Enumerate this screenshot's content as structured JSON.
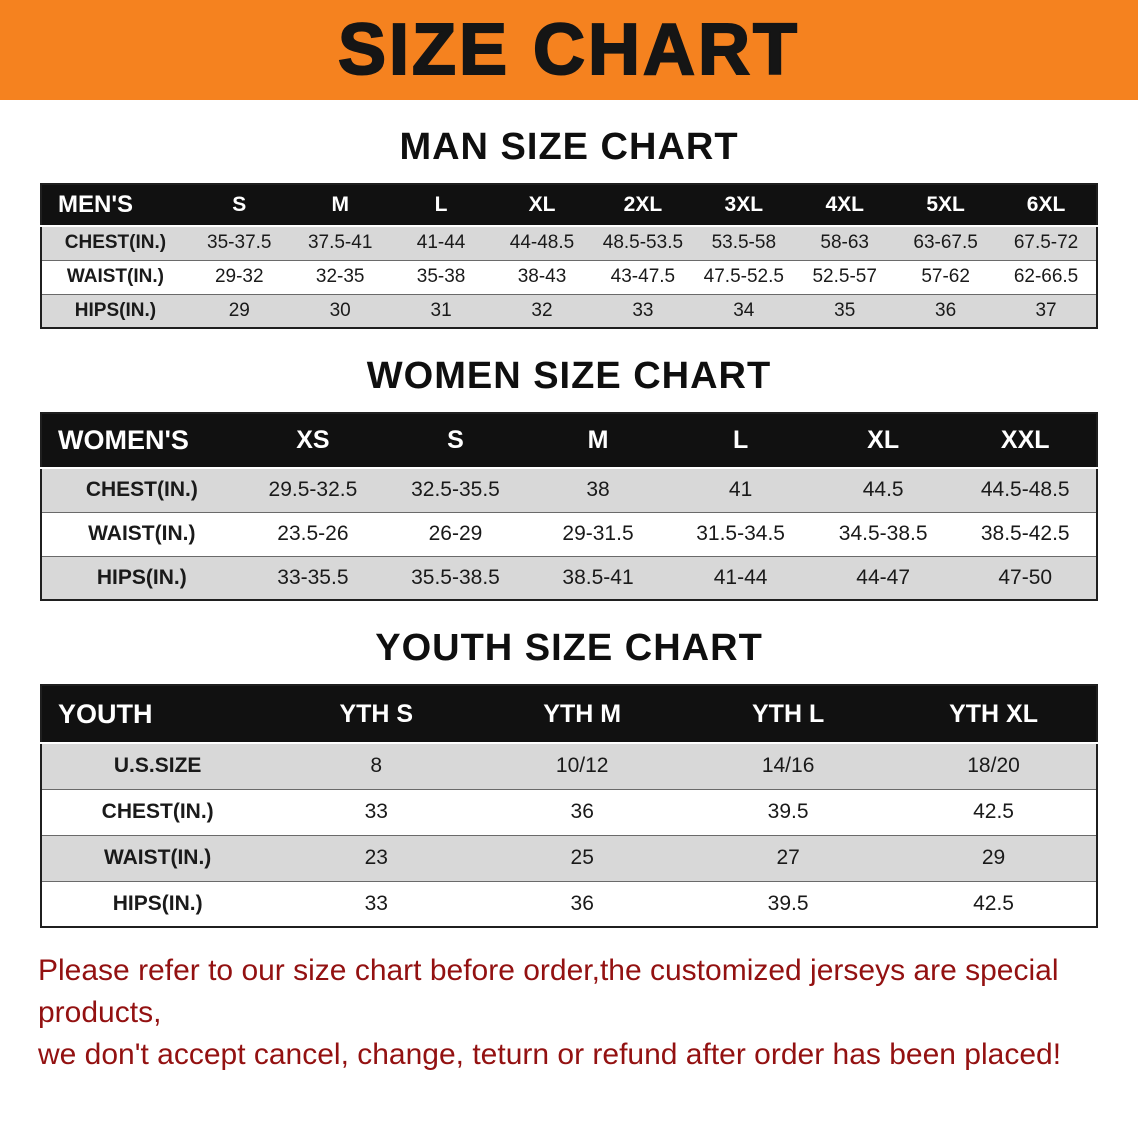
{
  "banner": {
    "title": "SIZE CHART"
  },
  "colors": {
    "banner_bg": "#f5821f",
    "table_header_bg": "#111111",
    "stripe_gray": "#d8d8d8",
    "footer_red": "#931111"
  },
  "sections": [
    {
      "heading": "MAN SIZE CHART",
      "table": {
        "header": [
          "MEN'S",
          "S",
          "M",
          "L",
          "XL",
          "2XL",
          "3XL",
          "4XL",
          "5XL",
          "6XL"
        ],
        "rows": [
          [
            "CHEST(IN.)",
            "35-37.5",
            "37.5-41",
            "41-44",
            "44-48.5",
            "48.5-53.5",
            "53.5-58",
            "58-63",
            "63-67.5",
            "67.5-72"
          ],
          [
            "WAIST(IN.)",
            "29-32",
            "32-35",
            "35-38",
            "38-43",
            "43-47.5",
            "47.5-52.5",
            "52.5-57",
            "57-62",
            "62-66.5"
          ],
          [
            "HIPS(IN.)",
            "29",
            "30",
            "31",
            "32",
            "33",
            "34",
            "35",
            "36",
            "37"
          ]
        ]
      }
    },
    {
      "heading": "WOMEN SIZE CHART",
      "table": {
        "header": [
          "WOMEN'S",
          "XS",
          "S",
          "M",
          "L",
          "XL",
          "XXL"
        ],
        "rows": [
          [
            "CHEST(IN.)",
            "29.5-32.5",
            "32.5-35.5",
            "38",
            "41",
            "44.5",
            "44.5-48.5"
          ],
          [
            "WAIST(IN.)",
            "23.5-26",
            "26-29",
            "29-31.5",
            "31.5-34.5",
            "34.5-38.5",
            "38.5-42.5"
          ],
          [
            "HIPS(IN.)",
            "33-35.5",
            "35.5-38.5",
            "38.5-41",
            "41-44",
            "44-47",
            "47-50"
          ]
        ]
      }
    },
    {
      "heading": "YOUTH SIZE CHART",
      "table": {
        "header": [
          "YOUTH",
          "YTH S",
          "YTH M",
          "YTH L",
          "YTH XL"
        ],
        "rows": [
          [
            "U.S.SIZE",
            "8",
            "10/12",
            "14/16",
            "18/20"
          ],
          [
            "CHEST(IN.)",
            "33",
            "36",
            "39.5",
            "42.5"
          ],
          [
            "WAIST(IN.)",
            "23",
            "25",
            "27",
            "29"
          ],
          [
            "HIPS(IN.)",
            "33",
            "36",
            "39.5",
            "42.5"
          ]
        ]
      }
    }
  ],
  "footer": {
    "line1": "Please refer to our size chart before order,the customized jerseys are special products,",
    "line2": "we don't accept cancel, change, teturn or refund after order has been placed!"
  }
}
